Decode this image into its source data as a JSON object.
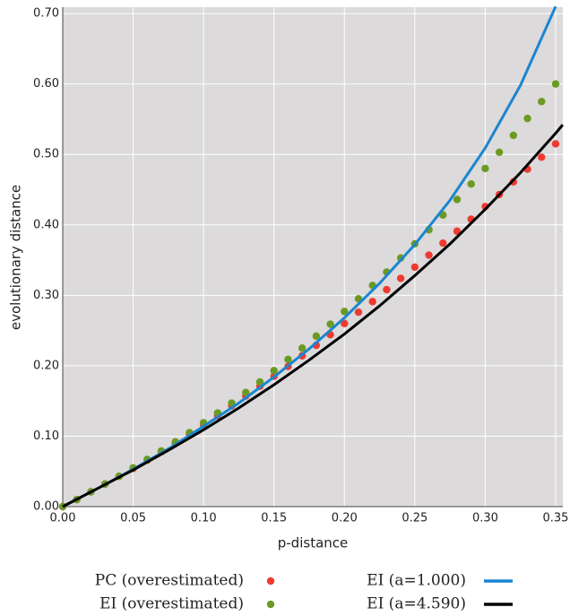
{
  "chart_data": {
    "type": "scatter",
    "xlabel": "p-distance",
    "ylabel": "evolutionary distance",
    "xlim": [
      0,
      0.3551
    ],
    "ylim": [
      0,
      0.709
    ],
    "xticks": [
      {
        "value": 0,
        "label": "0.00"
      },
      {
        "value": 0.05,
        "label": "0.05"
      },
      {
        "value": 0.1,
        "label": "0.10"
      },
      {
        "value": 0.15,
        "label": "0.15"
      },
      {
        "value": 0.2,
        "label": "0.20"
      },
      {
        "value": 0.25,
        "label": "0.25"
      },
      {
        "value": 0.3,
        "label": "0.30"
      },
      {
        "value": 0.35,
        "label": "0.35"
      }
    ],
    "yticks": [
      {
        "value": 0,
        "label": "0.00"
      },
      {
        "value": 0.1,
        "label": "0.10"
      },
      {
        "value": 0.2,
        "label": "0.20"
      },
      {
        "value": 0.3,
        "label": "0.30"
      },
      {
        "value": 0.4,
        "label": "0.40"
      },
      {
        "value": 0.5,
        "label": "0.50"
      },
      {
        "value": 0.6,
        "label": "0.60"
      },
      {
        "value": 0.7,
        "label": "0.70"
      }
    ],
    "grid": true,
    "series": [
      {
        "name": "PC (overestimated)",
        "type": "scatter",
        "color": "#ee3a30",
        "x": [
          0,
          0.01,
          0.02,
          0.03,
          0.04,
          0.05,
          0.06,
          0.07,
          0.08,
          0.09,
          0.1,
          0.11,
          0.12,
          0.13,
          0.14,
          0.15,
          0.16,
          0.17,
          0.18,
          0.19,
          0.2,
          0.21,
          0.22,
          0.23,
          0.24,
          0.25,
          0.26,
          0.27,
          0.28,
          0.29,
          0.3,
          0.31,
          0.32,
          0.33,
          0.34,
          0.35
        ],
        "values": [
          0,
          0.01,
          0.021,
          0.032,
          0.043,
          0.054,
          0.066,
          0.078,
          0.09,
          0.103,
          0.116,
          0.129,
          0.143,
          0.157,
          0.171,
          0.185,
          0.199,
          0.214,
          0.229,
          0.244,
          0.26,
          0.276,
          0.291,
          0.308,
          0.324,
          0.34,
          0.357,
          0.374,
          0.391,
          0.408,
          0.426,
          0.443,
          0.461,
          0.479,
          0.496,
          0.515
        ]
      },
      {
        "name": "EI (overestimated)",
        "type": "scatter",
        "color": "#6b9a23",
        "x": [
          0,
          0.01,
          0.02,
          0.03,
          0.04,
          0.05,
          0.06,
          0.07,
          0.08,
          0.09,
          0.1,
          0.11,
          0.12,
          0.13,
          0.14,
          0.15,
          0.16,
          0.17,
          0.18,
          0.19,
          0.2,
          0.21,
          0.22,
          0.23,
          0.24,
          0.25,
          0.26,
          0.27,
          0.28,
          0.29,
          0.3,
          0.31,
          0.32,
          0.33,
          0.34,
          0.35
        ],
        "values": [
          0,
          0.01,
          0.021,
          0.032,
          0.043,
          0.055,
          0.067,
          0.079,
          0.092,
          0.105,
          0.119,
          0.133,
          0.147,
          0.162,
          0.177,
          0.193,
          0.209,
          0.225,
          0.242,
          0.259,
          0.277,
          0.295,
          0.314,
          0.333,
          0.353,
          0.373,
          0.393,
          0.414,
          0.436,
          0.458,
          0.48,
          0.503,
          0.527,
          0.551,
          0.575,
          0.6
        ]
      },
      {
        "name": "EI (a=1.000)",
        "type": "line",
        "color": "#1a86d0",
        "x": [
          0,
          0.025,
          0.05,
          0.075,
          0.1,
          0.125,
          0.15,
          0.175,
          0.2,
          0.225,
          0.25,
          0.275,
          0.3,
          0.325,
          0.35
        ],
        "values": [
          0,
          0.026,
          0.053,
          0.082,
          0.114,
          0.147,
          0.184,
          0.224,
          0.268,
          0.317,
          0.372,
          0.435,
          0.509,
          0.598,
          0.71
        ]
      },
      {
        "name": "EI (a=4.590)",
        "type": "line",
        "color": "#000000",
        "x": [
          0,
          0.025,
          0.05,
          0.075,
          0.1,
          0.125,
          0.15,
          0.175,
          0.2,
          0.225,
          0.25,
          0.275,
          0.3,
          0.325,
          0.35,
          0.355
        ],
        "values": [
          0,
          0.026,
          0.052,
          0.08,
          0.109,
          0.14,
          0.173,
          0.208,
          0.245,
          0.285,
          0.328,
          0.373,
          0.422,
          0.474,
          0.53,
          0.542
        ]
      }
    ]
  }
}
